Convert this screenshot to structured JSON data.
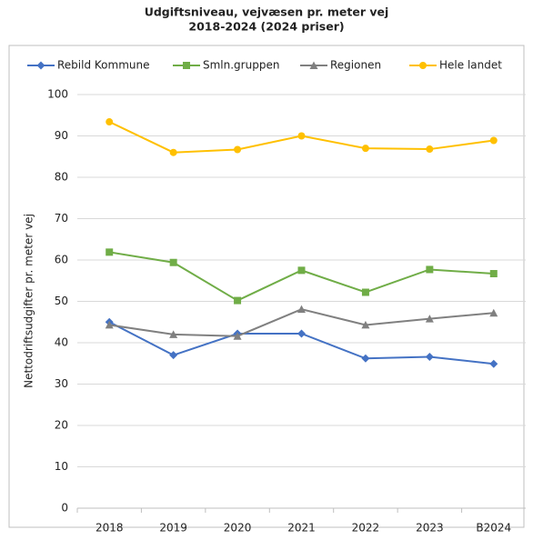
{
  "chart_data": {
    "type": "line",
    "title": [
      "Udgiftsniveau, vejvæsen pr. meter vej",
      "2018-2024 (2024 priser)"
    ],
    "y_label": "Nettodriftsudgifter pr. meter vej",
    "categories": [
      "2018",
      "2019",
      "2020",
      "2021",
      "2022",
      "2023",
      "B2024"
    ],
    "series": [
      {
        "name": "Rebild Kommune",
        "color": "#4472c4",
        "marker": "diamond",
        "values": [
          45,
          37,
          42.2,
          42.2,
          36.2,
          36.6,
          34.9
        ]
      },
      {
        "name": "Smln.gruppen",
        "color": "#70ad47",
        "marker": "square",
        "values": [
          61.9,
          59.4,
          50.2,
          57.5,
          52.2,
          57.7,
          56.7
        ]
      },
      {
        "name": "Regionen",
        "color": "#808080",
        "marker": "triangle",
        "values": [
          44.3,
          42,
          41.6,
          48.1,
          44.3,
          45.8,
          47.2
        ]
      },
      {
        "name": "Hele landet",
        "color": "#ffc000",
        "marker": "circle",
        "values": [
          93.4,
          86,
          86.7,
          90,
          87,
          86.8,
          88.9
        ]
      }
    ],
    "ylim": [
      0,
      100
    ],
    "yticks": [
      0,
      10,
      20,
      30,
      40,
      50,
      60,
      70,
      80,
      90,
      100
    ],
    "grid": true,
    "legend": "top"
  }
}
